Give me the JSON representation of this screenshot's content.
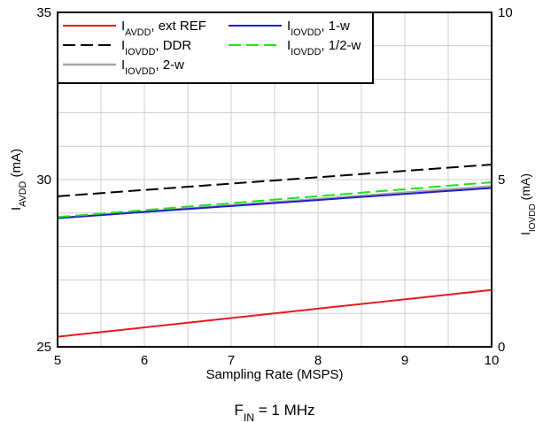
{
  "chart_data": {
    "type": "line",
    "x": [
      5,
      10
    ],
    "xlim": [
      5,
      10
    ],
    "xticks": [
      5,
      6,
      7,
      8,
      9,
      10
    ],
    "xlabel": "Sampling Rate (MSPS)",
    "ylim": [
      25,
      35
    ],
    "yticks": [
      25,
      30,
      35
    ],
    "y2lim": [
      0,
      10
    ],
    "y2ticks": [
      0,
      5,
      10
    ],
    "ylabel": {
      "main": "I",
      "sub": "AVDD",
      "rest": " (mA)"
    },
    "y2label": {
      "main": "I",
      "sub": "IOVDD",
      "rest": " (mA)"
    },
    "grid": true,
    "legend_position": "top-left",
    "caption": {
      "main": "F",
      "sub": "IN",
      "rest": " = 1 MHz"
    },
    "series": [
      {
        "name": {
          "main": "I",
          "sub": "AVDD",
          "rest": ", ext REF"
        },
        "axis": "left",
        "values": [
          25.3,
          26.7
        ],
        "color": "#e8191e",
        "dash": "solid"
      },
      {
        "name": {
          "main": "I",
          "sub": "IOVDD",
          "rest": ", DDR"
        },
        "axis": "right",
        "values": [
          4.5,
          5.45
        ],
        "color": "#000000",
        "dash": "dashed"
      },
      {
        "name": {
          "main": "I",
          "sub": "IOVDD",
          "rest": ", 2-w"
        },
        "axis": "right",
        "values": [
          3.85,
          4.8
        ],
        "color": "#a6a6a6",
        "dash": "solid"
      },
      {
        "name": {
          "main": "I",
          "sub": "IOVDD",
          "rest": ", 1-w"
        },
        "axis": "right",
        "values": [
          3.85,
          4.75
        ],
        "color": "#1f1fd1",
        "dash": "solid"
      },
      {
        "name": {
          "main": "I",
          "sub": "IOVDD",
          "rest": ", 1/2-w"
        },
        "axis": "right",
        "values": [
          3.88,
          4.92
        ],
        "color": "#19e619",
        "dash": "dashed"
      }
    ]
  }
}
